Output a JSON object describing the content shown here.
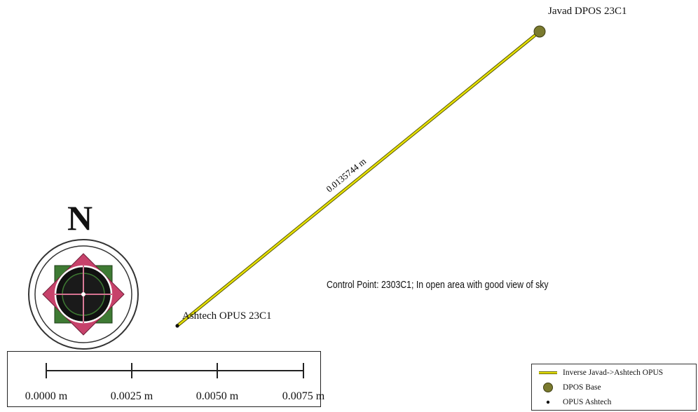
{
  "map": {
    "inverse_line_label": "0.0135744 m",
    "control_note": "Control Point: 2303C1;  In open area with good view of sky",
    "points": {
      "javad": {
        "label": "Javad DPOS 23C1"
      },
      "ashtech": {
        "label": "Ashtech OPUS 23C1"
      }
    },
    "colors": {
      "inverse_line": "#e6e000",
      "inverse_line_outline": "#555500",
      "dpos_base": "#7a7a2e",
      "opus_ashtech": "#111111"
    }
  },
  "compass": {
    "north_label": "N",
    "icon": "north-arrow-compass-rose"
  },
  "scale_bar": {
    "ticks": [
      "0.0000 m",
      "0.0025 m",
      "0.0050 m",
      "0.0075 m"
    ]
  },
  "legend": {
    "items": [
      {
        "label": "Inverse Javad->Ashtech OPUS",
        "symbol": "yellow-line-icon"
      },
      {
        "label": "DPOS Base",
        "symbol": "olive-circle-icon"
      },
      {
        "label": "OPUS Ashtech",
        "symbol": "small-dot-icon"
      }
    ]
  }
}
